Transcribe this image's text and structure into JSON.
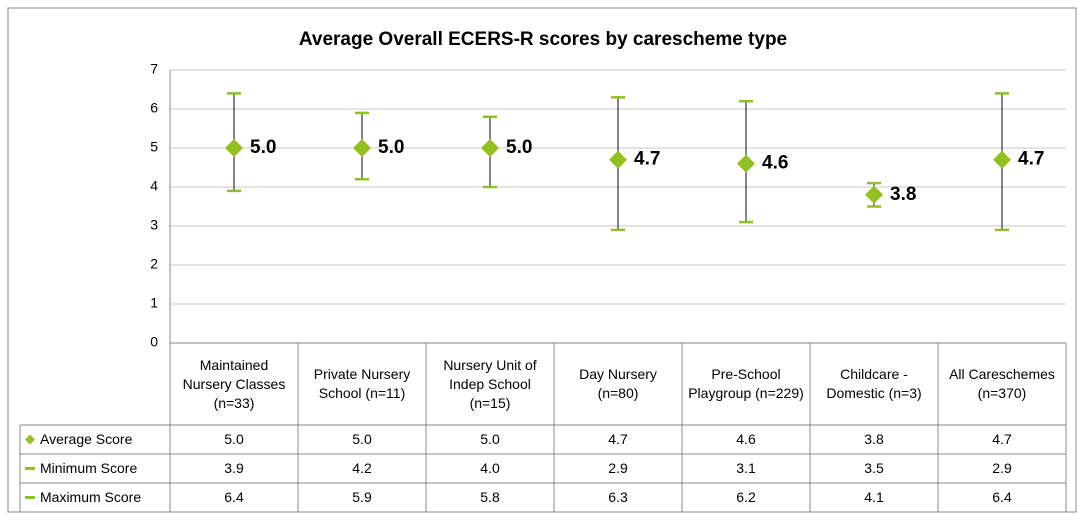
{
  "chart_data": {
    "type": "range",
    "title": "Average Overall ECERS-R scores by carescheme type",
    "categories": [
      "Maintained Nursery Classes (n=33)",
      "Private Nursery School (n=11)",
      "Nursery Unit of Indep School (n=15)",
      "Day Nursery (n=80)",
      "Pre-School Playgroup (n=229)",
      "Childcare - Domestic (n=3)",
      "All Careschemes (n=370)"
    ],
    "series": [
      {
        "name": "Average Score",
        "color": "#92c020",
        "values": [
          5.0,
          5.0,
          5.0,
          4.7,
          4.6,
          3.8,
          4.7
        ],
        "value_labels": [
          "5.0",
          "5.0",
          "5.0",
          "4.7",
          "4.6",
          "3.8",
          "4.7"
        ]
      },
      {
        "name": "Minimum Score",
        "color": "#92c020",
        "values": [
          3.9,
          4.2,
          4.0,
          2.9,
          3.1,
          3.5,
          2.9
        ],
        "value_labels": [
          "3.9",
          "4.2",
          "4.0",
          "2.9",
          "3.1",
          "3.5",
          "2.9"
        ]
      },
      {
        "name": "Maximum Score",
        "color": "#92c020",
        "values": [
          6.4,
          5.9,
          5.8,
          6.3,
          6.2,
          4.1,
          6.4
        ],
        "value_labels": [
          "6.4",
          "5.9",
          "5.8",
          "6.3",
          "6.2",
          "4.1",
          "6.4"
        ]
      }
    ],
    "range_line_color": "#404040",
    "ylim": [
      0,
      7
    ],
    "yticks": [
      0,
      1,
      2,
      3,
      4,
      5,
      6,
      7
    ],
    "grid": true
  }
}
